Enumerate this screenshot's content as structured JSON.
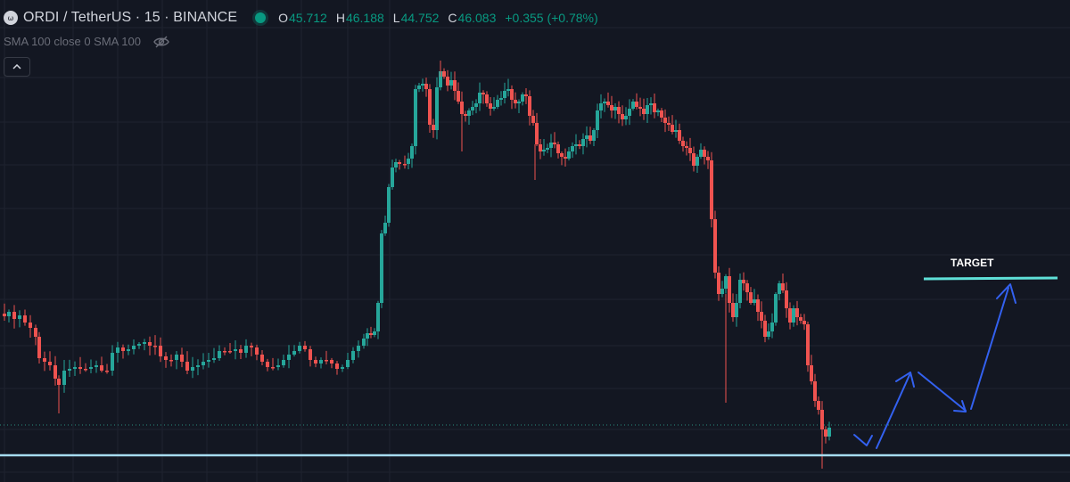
{
  "header": {
    "symbol": "ORDI / TetherUS · 15 · BINANCE",
    "ohlc": [
      {
        "k": "O",
        "v": "45.712"
      },
      {
        "k": "H",
        "v": "46.188"
      },
      {
        "k": "L",
        "v": "44.752"
      },
      {
        "k": "C",
        "v": "46.083"
      },
      {
        "k": "",
        "v": "+0.355 (+0.78%)"
      }
    ]
  },
  "indicator": {
    "label": "SMA 100 close 0 SMA 100"
  },
  "colors": {
    "bg": "#131722",
    "up": "#26a69a",
    "down": "#ef5350",
    "level": "#a6dcf0",
    "target": "#5fe0d8",
    "arrow": "#2962ff"
  },
  "chart_data": {
    "type": "candlestick",
    "annotations": [
      {
        "type": "horizontal_line",
        "label": "TARGET"
      },
      {
        "type": "horizontal_line",
        "label": ""
      },
      {
        "type": "arrow_path",
        "direction": "up-down-up"
      }
    ]
  }
}
